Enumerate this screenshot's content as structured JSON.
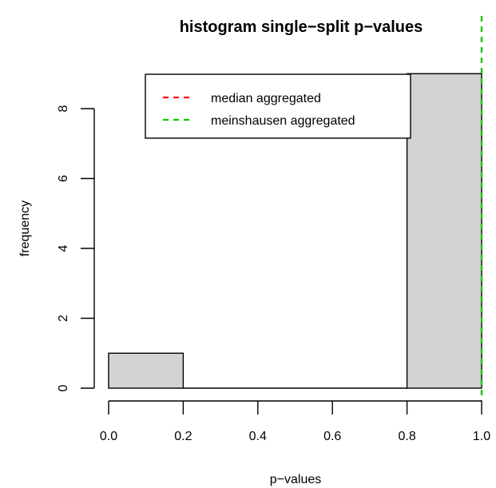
{
  "chart_data": {
    "type": "bar",
    "title": "histogram single−split p−values",
    "xlabel": "p−values",
    "ylabel": "frequency",
    "bins": [
      {
        "start": 0.0,
        "end": 0.2,
        "count": 1
      },
      {
        "start": 0.2,
        "end": 0.4,
        "count": 0
      },
      {
        "start": 0.4,
        "end": 0.6,
        "count": 0
      },
      {
        "start": 0.6,
        "end": 0.8,
        "count": 0
      },
      {
        "start": 0.8,
        "end": 1.0,
        "count": 9
      }
    ],
    "xlim": [
      0,
      1
    ],
    "ylim": [
      0,
      9
    ],
    "x_ticks": [
      0.0,
      0.2,
      0.4,
      0.6,
      0.8,
      1.0
    ],
    "x_tick_labels": [
      "0.0",
      "0.2",
      "0.4",
      "0.6",
      "0.8",
      "1.0"
    ],
    "y_ticks": [
      0,
      2,
      4,
      6,
      8
    ],
    "y_tick_labels": [
      "0",
      "2",
      "4",
      "6",
      "8"
    ],
    "bar_color": "#d3d3d3",
    "vlines": [
      {
        "name": "median aggregated",
        "x": 1.0,
        "color": "#ff0000",
        "style": "dashed"
      },
      {
        "name": "meinshausen aggregated",
        "x": 1.0,
        "color": "#00cc00",
        "style": "dashed"
      }
    ],
    "legend": {
      "placement": "top-center",
      "entries": [
        {
          "label": "median aggregated",
          "color": "#ff0000"
        },
        {
          "label": "meinshausen aggregated",
          "color": "#00cc00"
        }
      ]
    },
    "grid": false
  }
}
